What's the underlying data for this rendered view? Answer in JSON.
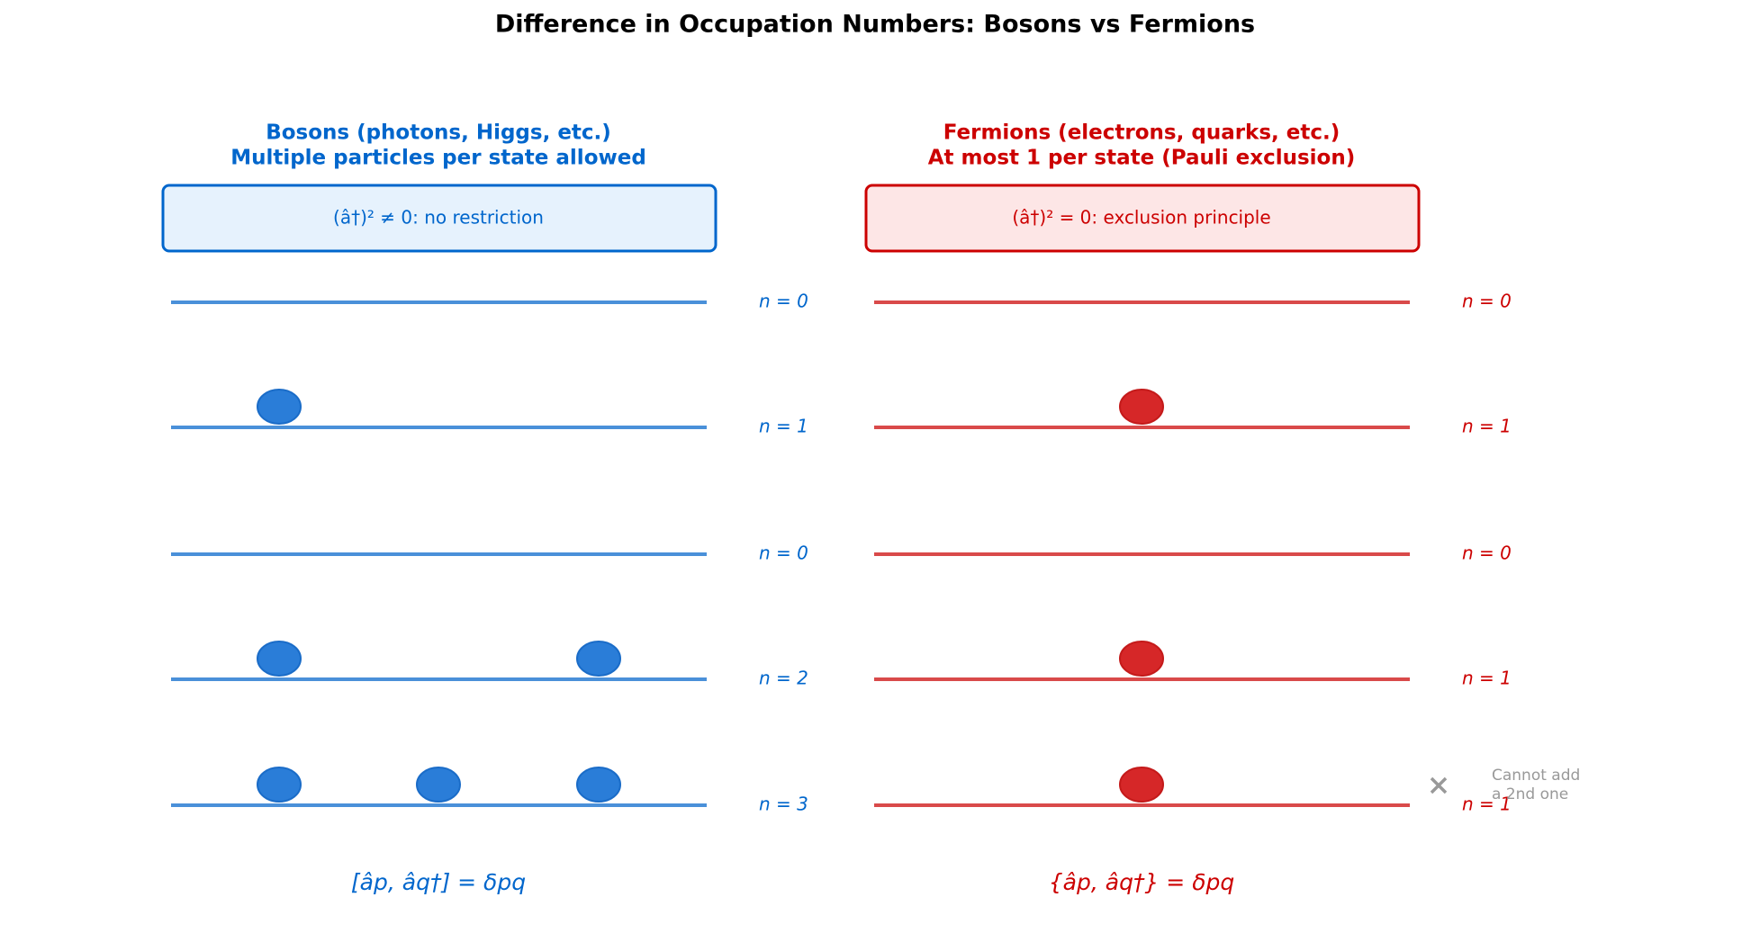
{
  "title": "Difference in Occupation Numbers: Bosons vs Fermions",
  "panels": [
    {
      "title": [
        "Bosons (photons, Higgs, etc.)",
        "Multiple particles per state allowed"
      ],
      "box": "(â†)² ≠ 0: no restriction",
      "levels": [
        {
          "label": "n = 0",
          "particles": 0
        },
        {
          "label": "n = 1",
          "particles": 1
        },
        {
          "label": "n = 0",
          "particles": 0
        },
        {
          "label": "n = 2",
          "particles": 2
        },
        {
          "label": "n = 3",
          "particles": 3
        }
      ],
      "formula": "[âp, âq†] = δpq"
    },
    {
      "title": [
        "Fermions (electrons, quarks, etc.)",
        "At most 1 per state (Pauli exclusion)"
      ],
      "box": "(â†)² = 0: exclusion principle",
      "levels": [
        {
          "label": "n = 0",
          "particles": 0
        },
        {
          "label": "n = 1",
          "particles": 1
        },
        {
          "label": "n = 0",
          "particles": 0
        },
        {
          "label": "n = 1",
          "particles": 1
        },
        {
          "label": "n = 1",
          "particles": 1,
          "note": [
            "Cannot add",
            "a 2nd one"
          ]
        }
      ],
      "formula": "{âp, âq†} = δpq"
    }
  ]
}
